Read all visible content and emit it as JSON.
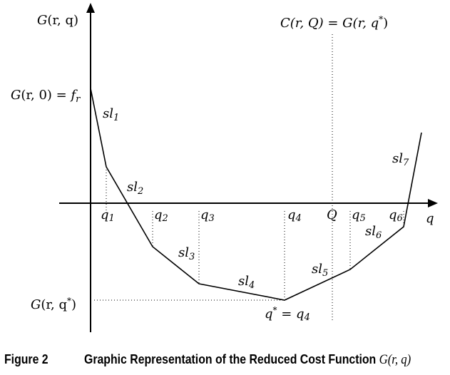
{
  "axes": {
    "y_label": {
      "main": "G",
      "args": "(r, q)"
    },
    "x_label": "q",
    "f_label": {
      "main": "G",
      "args": "(r, 0) = ",
      "f": "f",
      "f_sub": "r"
    },
    "g_opt_label": {
      "main": "G",
      "args": "(r, q",
      "sup": "*",
      "close": ")"
    }
  },
  "top_equation": {
    "lhs": "C(r, Q) = G(r, q",
    "sup": "*",
    "close": ")"
  },
  "breakpoints": [
    {
      "var": "q",
      "sub": "1"
    },
    {
      "var": "q",
      "sub": "2"
    },
    {
      "var": "q",
      "sub": "3"
    },
    {
      "var": "q",
      "sub": "4"
    },
    {
      "var": "Q",
      "sub": ""
    },
    {
      "var": "q",
      "sub": "5"
    },
    {
      "var": "q",
      "sub": "6"
    }
  ],
  "slopes": [
    {
      "base": "sl",
      "sub": "1"
    },
    {
      "base": "sl",
      "sub": "2"
    },
    {
      "base": "sl",
      "sub": "3"
    },
    {
      "base": "sl",
      "sub": "4"
    },
    {
      "base": "sl",
      "sub": "5"
    },
    {
      "base": "sl",
      "sub": "6"
    },
    {
      "base": "sl",
      "sub": "7"
    }
  ],
  "optimum": {
    "var": "q",
    "sup": "*",
    "eq": " = q",
    "sub": "4"
  },
  "caption": {
    "label": "Figure 2",
    "text": "Graphic Representation of the Reduced Cost Function ",
    "fn": "G(r, q)"
  }
}
